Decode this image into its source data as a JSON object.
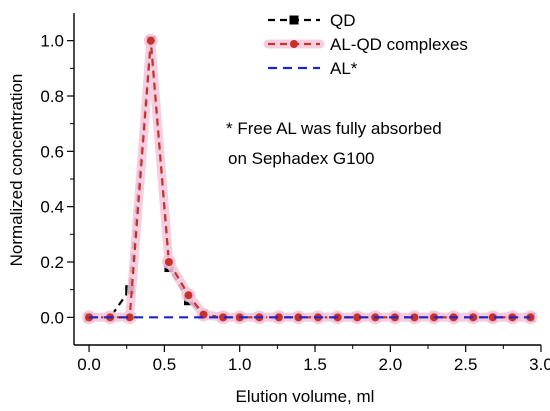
{
  "chart_data": {
    "type": "line",
    "xlabel": "Elution volume, ml",
    "ylabel": "Normalized concentration",
    "xlim": [
      -0.1,
      3.0
    ],
    "ylim": [
      -0.1,
      1.1
    ],
    "x_ticks": [
      "0.0",
      "0.5",
      "1.0",
      "1.5",
      "2.0",
      "2.5",
      "3.0"
    ],
    "y_ticks": [
      "0.0",
      "0.2",
      "0.4",
      "0.6",
      "0.8",
      "1.0"
    ],
    "grid": false,
    "legend_position": "top-right",
    "series": [
      {
        "name": "QD",
        "marker": "square",
        "line_style": "dashed",
        "color": "#000000",
        "points": [
          [
            0.0,
            0.0
          ],
          [
            0.14,
            0.0
          ],
          [
            0.27,
            0.1
          ],
          [
            0.41,
            1.0
          ],
          [
            0.53,
            0.18
          ],
          [
            0.66,
            0.06
          ],
          [
            0.76,
            0.01
          ],
          [
            0.89,
            0.0
          ],
          [
            1.0,
            0.0
          ],
          [
            1.13,
            0.0
          ],
          [
            1.26,
            0.0
          ],
          [
            1.39,
            0.0
          ],
          [
            1.52,
            0.0
          ],
          [
            1.65,
            0.0
          ],
          [
            1.78,
            0.0
          ],
          [
            1.9,
            0.0
          ],
          [
            2.03,
            0.0
          ],
          [
            2.16,
            0.0
          ],
          [
            2.29,
            0.0
          ],
          [
            2.42,
            0.0
          ],
          [
            2.55,
            0.0
          ],
          [
            2.68,
            0.0
          ],
          [
            2.81,
            0.0
          ],
          [
            2.93,
            0.0
          ]
        ]
      },
      {
        "name": "AL-QD complexes",
        "marker": "circle",
        "line_style": "dashed",
        "color": "#c8302a",
        "halo_color": "#f3c6dc",
        "points": [
          [
            0.0,
            0.0
          ],
          [
            0.14,
            0.0
          ],
          [
            0.27,
            0.0
          ],
          [
            0.41,
            1.0
          ],
          [
            0.53,
            0.2
          ],
          [
            0.66,
            0.08
          ],
          [
            0.76,
            0.01
          ],
          [
            0.89,
            0.0
          ],
          [
            1.0,
            0.0
          ],
          [
            1.13,
            0.0
          ],
          [
            1.26,
            0.0
          ],
          [
            1.39,
            0.0
          ],
          [
            1.52,
            0.0
          ],
          [
            1.65,
            0.0
          ],
          [
            1.78,
            0.0
          ],
          [
            1.9,
            0.0
          ],
          [
            2.03,
            0.0
          ],
          [
            2.16,
            0.0
          ],
          [
            2.29,
            0.0
          ],
          [
            2.42,
            0.0
          ],
          [
            2.55,
            0.0
          ],
          [
            2.68,
            0.0
          ],
          [
            2.81,
            0.0
          ],
          [
            2.93,
            0.0
          ]
        ]
      },
      {
        "name": "AL*",
        "marker": "none",
        "line_style": "dashed",
        "color": "#1d24c8",
        "points": [
          [
            0.0,
            0.0
          ],
          [
            2.93,
            0.0
          ]
        ]
      }
    ],
    "annotations": [
      "* Free AL was fully absorbed",
      "on Sephadex G100"
    ]
  }
}
